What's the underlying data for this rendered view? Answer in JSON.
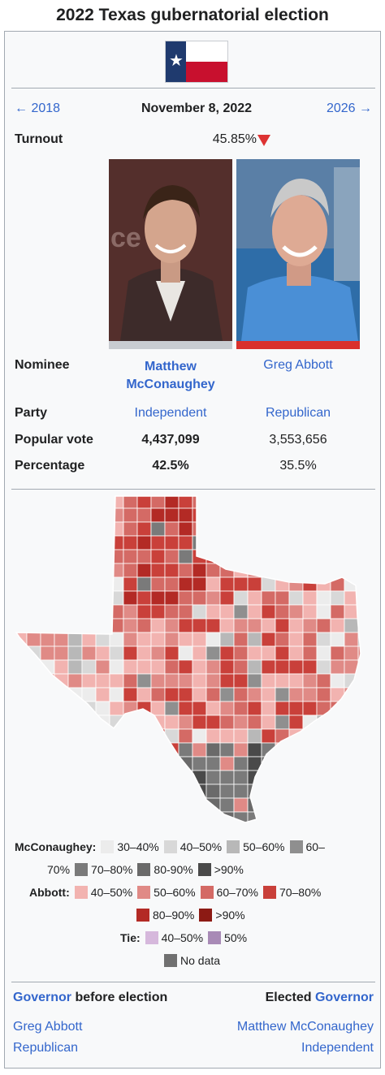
{
  "title": "2022 Texas gubernatorial election",
  "nav": {
    "prev": "← 2018",
    "date": "November 8, 2022",
    "next": "2026 →"
  },
  "turnout": {
    "label": "Turnout",
    "value": "45.85%",
    "trend_icon": "down-triangle-icon",
    "trend_color": "#d33"
  },
  "candidates": [
    {
      "name_line1": "Matthew",
      "name_line2": "McConaughey",
      "party": "Independent",
      "votes": "4,437,099",
      "percentage": "42.5%",
      "bar_color": "#c8ccd1",
      "winner": true
    },
    {
      "name_line1": "Greg Abbott",
      "name_line2": "",
      "party": "Republican",
      "votes": "3,553,656",
      "percentage": "35.5%",
      "bar_color": "#d9302c",
      "winner": false
    }
  ],
  "labels": {
    "nominee": "Nominee",
    "party": "Party",
    "popular_vote": "Popular vote",
    "percentage": "Percentage"
  },
  "legend": {
    "mcconaughey_label": "McConaughey:",
    "mcconaughey_items": [
      {
        "text": "30–40%",
        "color": "#ececec"
      },
      {
        "text": "40–50%",
        "color": "#d8d8d8"
      },
      {
        "text": "50–60%",
        "color": "#b8b8b8"
      },
      {
        "text": "60–",
        "color": "#8f8f8f"
      },
      {
        "text": "70–80%",
        "color": "#7a7a7a"
      },
      {
        "text": "80-90%",
        "color": "#6a6a6a"
      },
      {
        "text": ">90%",
        "color": "#4a4a4a"
      }
    ],
    "mcconaughey_wrap": "70%",
    "abbott_label": "Abbott:",
    "abbott_items": [
      {
        "text": "40–50%",
        "color": "#f2b3b0"
      },
      {
        "text": "50–60%",
        "color": "#e08a86"
      },
      {
        "text": "60–70%",
        "color": "#d46a65"
      },
      {
        "text": "70–80%",
        "color": "#c9403a"
      },
      {
        "text": "80–90%",
        "color": "#b32a25"
      },
      {
        "text": ">90%",
        "color": "#8c1a14"
      }
    ],
    "tie_label": "Tie:",
    "tie_items": [
      {
        "text": "40–50%",
        "color": "#d6b8dc"
      },
      {
        "text": "50%",
        "color": "#a88ab6"
      }
    ],
    "no_data": {
      "text": "No data",
      "color": "#707070"
    }
  },
  "footer": {
    "before_link": "Governor",
    "before_suffix": " before election",
    "elected_prefix": "Elected ",
    "elected_link": "Governor",
    "before_name": "Greg Abbott",
    "before_party": "Republican",
    "elected_name": "Matthew McConaughey",
    "elected_party": "Independent"
  }
}
